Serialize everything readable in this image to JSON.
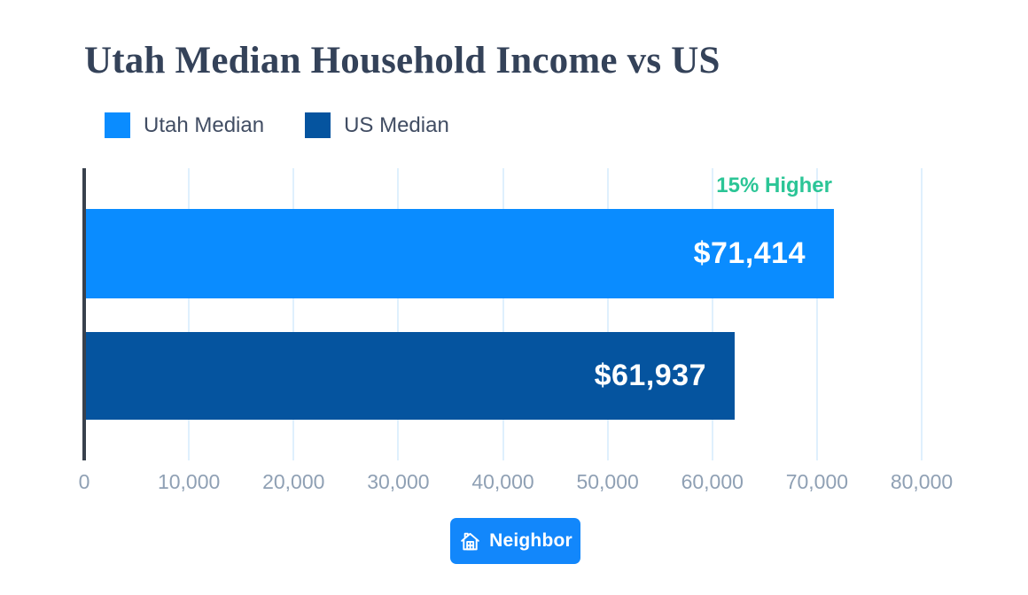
{
  "title": "Utah Median Household Income vs US",
  "legend": [
    {
      "label": "Utah Median",
      "color": "#0a8cff"
    },
    {
      "label": "US Median",
      "color": "#05549f"
    }
  ],
  "annotation": {
    "text": "15% Higher",
    "color": "#2bc596"
  },
  "footer_badge": {
    "label": "Neighbor",
    "color": "#1287fb",
    "icon": "house-icon"
  },
  "colors": {
    "title": "#344259",
    "legend_text": "#414d63",
    "gridline": "#dff0fd",
    "axis_line": "#39414d",
    "tick_text": "#8fa0b4",
    "bar_value_text": "#ffffff"
  },
  "chart_data": {
    "type": "bar",
    "orientation": "horizontal",
    "title": "Utah Median Household Income vs US",
    "categories": [
      "Utah Median",
      "US Median"
    ],
    "values": [
      71414,
      61937
    ],
    "value_labels": [
      "$71,414",
      "$61,937"
    ],
    "bar_colors": [
      "#0a8cff",
      "#05549f"
    ],
    "xlim": [
      0,
      80000
    ],
    "x_ticks": [
      0,
      10000,
      20000,
      30000,
      40000,
      50000,
      60000,
      70000,
      80000
    ],
    "x_tick_labels": [
      "0",
      "10,000",
      "20,000",
      "30,000",
      "40,000",
      "50,000",
      "60,000",
      "70,000",
      "80,000"
    ],
    "annotation": "15% Higher",
    "grid": true,
    "legend_position": "top-left"
  }
}
